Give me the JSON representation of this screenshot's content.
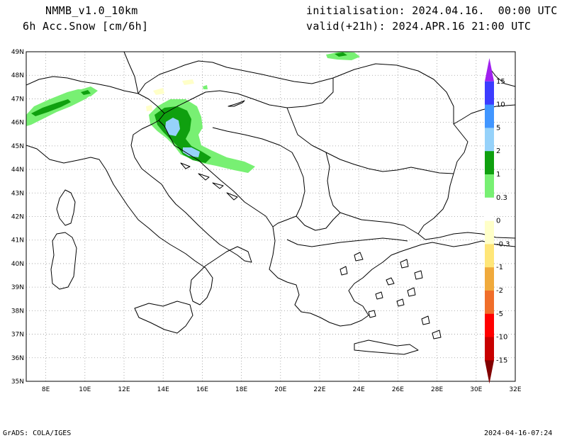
{
  "header": {
    "model": "NMMB_v1.0_10km",
    "variable": "6h Acc.Snow [cm/6h]",
    "init": "initialisation: 2024.04.16.  00:00 UTC",
    "valid": "valid(+21h): 2024.APR.16 21:00 UTC"
  },
  "map": {
    "lat_labels": [
      "49N",
      "48N",
      "47N",
      "46N",
      "45N",
      "44N",
      "43N",
      "42N",
      "41N",
      "40N",
      "39N",
      "38N",
      "37N",
      "36N",
      "35N"
    ],
    "lon_labels": [
      "8E",
      "10E",
      "12E",
      "14E",
      "16E",
      "18E",
      "20E",
      "22E",
      "24E",
      "26E",
      "28E",
      "30E",
      "32E"
    ],
    "grid": "dotted",
    "extent": {
      "lon": [
        7,
        32
      ],
      "lat": [
        35,
        49
      ]
    }
  },
  "colorbar": {
    "labels": [
      "15",
      "10",
      "5",
      "2",
      "1",
      "0.3",
      "0",
      "-0.3",
      "-1",
      "-2",
      "-5",
      "-10",
      "-15"
    ],
    "colors": [
      "#a020f0",
      "#3c3cff",
      "#4196ff",
      "#96d2fa",
      "#0fa00f",
      "#78f073",
      "#ffffff",
      "#ffffc8",
      "#ffe678",
      "#f0aa3c",
      "#f06e2a",
      "#ff0000",
      "#c80000",
      "#820000"
    ]
  },
  "footer": {
    "left": "GrADS: COLA/IGES",
    "right": "2024-04-16-07:24"
  }
}
